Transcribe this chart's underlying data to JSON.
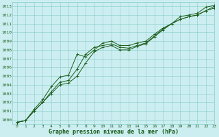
{
  "xlabel": "Graphe pression niveau de la mer (hPa)",
  "xlim": [
    -0.5,
    23
  ],
  "ylim": [
    999.5,
    1013.5
  ],
  "yticks": [
    1000,
    1001,
    1002,
    1003,
    1004,
    1005,
    1006,
    1007,
    1008,
    1009,
    1010,
    1011,
    1012,
    1013
  ],
  "xticks": [
    0,
    1,
    2,
    3,
    4,
    5,
    6,
    7,
    8,
    9,
    10,
    11,
    12,
    13,
    14,
    15,
    16,
    17,
    18,
    19,
    20,
    21,
    22,
    23
  ],
  "background_color": "#cceef0",
  "grid_color": "#88cccc",
  "line_color": "#1a5c1a",
  "line1_x": [
    0,
    1,
    2,
    3,
    4,
    5,
    6,
    7,
    8,
    9,
    10,
    11,
    12,
    13,
    14,
    15,
    16,
    17,
    18,
    19,
    20,
    21,
    22,
    23
  ],
  "line1_y": [
    999.7,
    999.9,
    1001.2,
    1002.3,
    1003.8,
    1004.9,
    1005.1,
    1007.5,
    1007.2,
    1008.0,
    1008.8,
    1009.0,
    1008.5,
    1008.5,
    1008.8,
    1009.0,
    1009.8,
    1010.5,
    1011.0,
    1011.8,
    1012.0,
    1012.2,
    1012.9,
    1013.1
  ],
  "line2_x": [
    0,
    1,
    2,
    3,
    4,
    5,
    6,
    7,
    8,
    9,
    10,
    11,
    12,
    13,
    14,
    15,
    16,
    17,
    18,
    19,
    20,
    21,
    22,
    23
  ],
  "line2_y": [
    999.7,
    999.9,
    1001.0,
    1002.0,
    1003.2,
    1004.3,
    1004.5,
    1005.8,
    1007.5,
    1008.3,
    1008.5,
    1008.7,
    1008.3,
    1008.2,
    1008.5,
    1008.8,
    1009.6,
    1010.4,
    1011.0,
    1011.5,
    1011.8,
    1012.0,
    1012.5,
    1012.8
  ],
  "line3_x": [
    0,
    1,
    2,
    3,
    4,
    5,
    6,
    7,
    8,
    9,
    10,
    11,
    12,
    13,
    14,
    15,
    16,
    17,
    18,
    19,
    20,
    21,
    22,
    23
  ],
  "line3_y": [
    999.7,
    999.9,
    1001.0,
    1002.0,
    1003.0,
    1004.0,
    1004.2,
    1005.0,
    1006.5,
    1007.8,
    1008.3,
    1008.5,
    1008.0,
    1008.0,
    1008.4,
    1008.7,
    1009.5,
    1010.3,
    1011.0,
    1011.5,
    1011.8,
    1012.0,
    1012.5,
    1013.0
  ],
  "font_family": "monospace",
  "tick_fontsize": 4.5,
  "label_fontsize": 6.0
}
